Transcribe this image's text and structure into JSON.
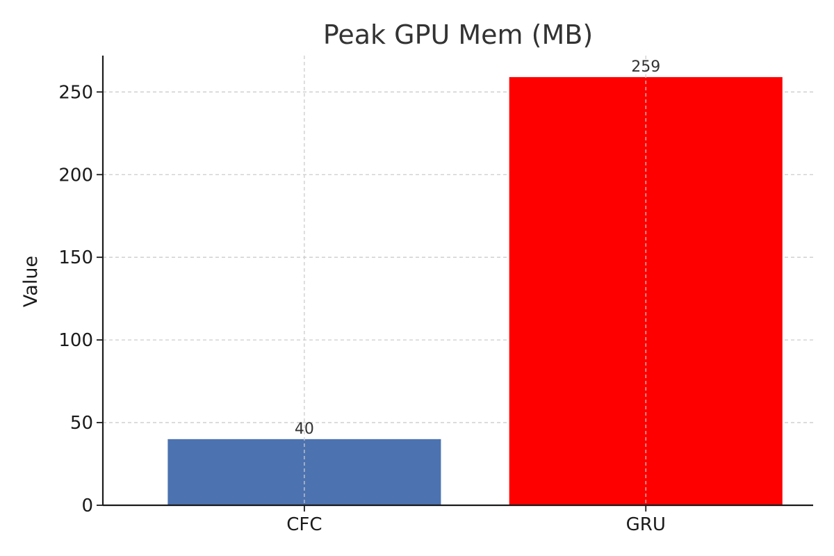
{
  "chart_data": {
    "type": "bar",
    "title": "Peak GPU Mem (MB)",
    "xlabel": "",
    "ylabel": "Value",
    "categories": [
      "CFC",
      "GRU"
    ],
    "values": [
      40,
      259
    ],
    "data_labels": [
      "40",
      "259"
    ],
    "colors": [
      "#4c72b0",
      "#ff0000"
    ],
    "ylim": [
      0,
      272
    ],
    "yticks": [
      0,
      50,
      100,
      150,
      200,
      250
    ],
    "grid": true,
    "legend": "none"
  }
}
